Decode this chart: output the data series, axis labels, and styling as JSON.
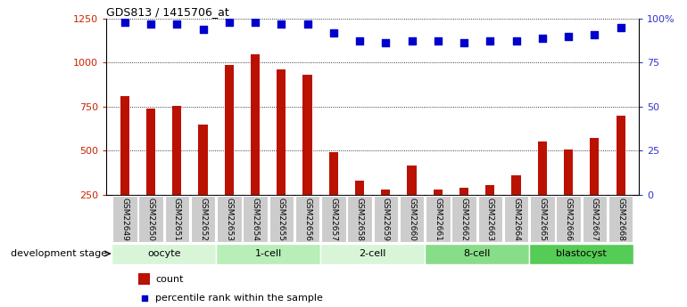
{
  "title": "GDS813 / 1415706_at",
  "samples": [
    "GSM22649",
    "GSM22650",
    "GSM22651",
    "GSM22652",
    "GSM22653",
    "GSM22654",
    "GSM22655",
    "GSM22656",
    "GSM22657",
    "GSM22658",
    "GSM22659",
    "GSM22660",
    "GSM22661",
    "GSM22662",
    "GSM22663",
    "GSM22664",
    "GSM22665",
    "GSM22666",
    "GSM22667",
    "GSM22668"
  ],
  "counts": [
    810,
    740,
    755,
    650,
    985,
    1045,
    960,
    930,
    490,
    330,
    280,
    415,
    280,
    290,
    305,
    360,
    555,
    505,
    575,
    700
  ],
  "percentiles": [
    98,
    97,
    97,
    94,
    98,
    98,
    97,
    97,
    92,
    87,
    86,
    87,
    87,
    86,
    87,
    87,
    89,
    90,
    91,
    95
  ],
  "groups": [
    {
      "name": "oocyte",
      "start": 0,
      "end": 4,
      "color": "#d8f5d8"
    },
    {
      "name": "1-cell",
      "start": 4,
      "end": 8,
      "color": "#b8eeb8"
    },
    {
      "name": "2-cell",
      "start": 8,
      "end": 12,
      "color": "#d8f5d8"
    },
    {
      "name": "8-cell",
      "start": 12,
      "end": 16,
      "color": "#88dd88"
    },
    {
      "name": "blastocyst",
      "start": 16,
      "end": 20,
      "color": "#55cc55"
    }
  ],
  "bar_color": "#bb1100",
  "dot_color": "#0000cc",
  "left_axis_color": "#cc2200",
  "right_axis_color": "#3333cc",
  "ylim_left": [
    250,
    1250
  ],
  "ylim_right": [
    0,
    100
  ],
  "yticks_left": [
    250,
    500,
    750,
    1000,
    1250
  ],
  "yticks_right": [
    0,
    25,
    50,
    75,
    100
  ],
  "legend_count": "count",
  "legend_pct": "percentile rank within the sample",
  "dev_stage_label": "development stage",
  "tick_label_bg": "#cccccc",
  "bar_width": 0.35
}
